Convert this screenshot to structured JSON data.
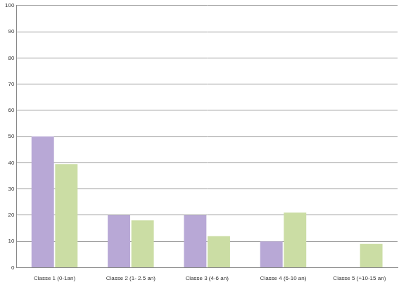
{
  "chart_data": {
    "type": "bar",
    "categories": [
      "Classe 1 (0-1an)",
      "Classe 2 (1- 2.5 an)",
      "Classe 3 (4-6 an)",
      "Classe 4 (6-10 an)",
      "Classe 5 (+10-15 an)"
    ],
    "series": [
      {
        "color": "#b8a8d6",
        "values": [
          50,
          20,
          20,
          10,
          0
        ]
      },
      {
        "color": "#cbdda4",
        "values": [
          39.5,
          18,
          12,
          21,
          9
        ]
      }
    ],
    "ylim": [
      0,
      100
    ],
    "yticks": [
      0,
      10,
      20,
      30,
      40,
      50,
      60,
      70,
      80,
      90,
      100
    ],
    "grid": true
  }
}
